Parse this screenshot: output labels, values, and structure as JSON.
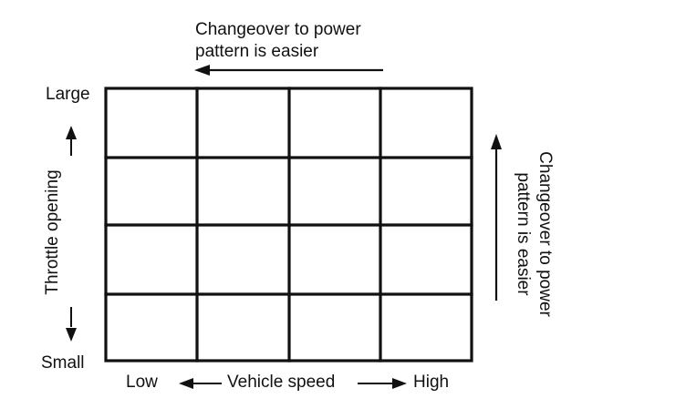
{
  "top_caption": {
    "line1": "Changeover to power",
    "line2": "pattern is easier"
  },
  "right_caption": {
    "line1": "Changeover to power",
    "line2": "pattern is easier"
  },
  "y_axis": {
    "title": "Throttle opening",
    "top_label": "Large",
    "bottom_label": "Small"
  },
  "x_axis": {
    "left_label": "Low",
    "title": "Vehicle speed",
    "right_label": "High"
  },
  "grid": {
    "rows": 4,
    "cols": 4
  }
}
